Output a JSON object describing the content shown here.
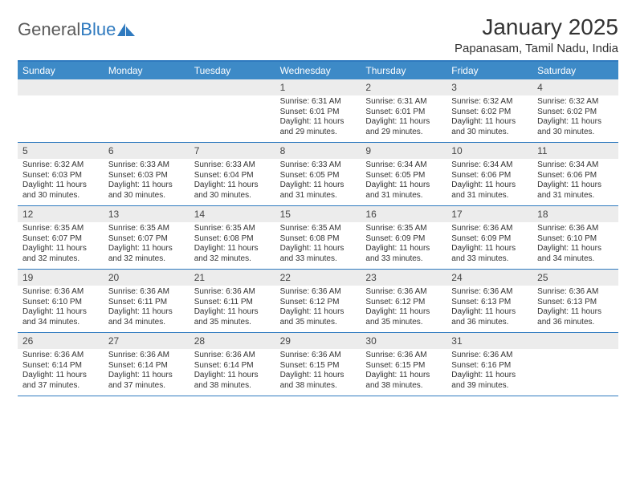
{
  "brand": {
    "first": "General",
    "second": "Blue"
  },
  "title": "January 2025",
  "location": "Papanasam, Tamil Nadu, India",
  "colors": {
    "header_bg": "#3d8ac7",
    "border": "#2f7abf",
    "daynum_bg": "#ececec",
    "text": "#333333",
    "brand_gray": "#5a5a5a",
    "brand_blue": "#2f7abf",
    "background": "#ffffff"
  },
  "layout": {
    "columns": 7,
    "rows": 5,
    "type": "calendar"
  },
  "weekdays": [
    "Sunday",
    "Monday",
    "Tuesday",
    "Wednesday",
    "Thursday",
    "Friday",
    "Saturday"
  ],
  "weeks": [
    {
      "nums": [
        "",
        "",
        "",
        "1",
        "2",
        "3",
        "4"
      ],
      "cells": [
        "",
        "",
        "",
        "Sunrise: 6:31 AM\nSunset: 6:01 PM\nDaylight: 11 hours and 29 minutes.",
        "Sunrise: 6:31 AM\nSunset: 6:01 PM\nDaylight: 11 hours and 29 minutes.",
        "Sunrise: 6:32 AM\nSunset: 6:02 PM\nDaylight: 11 hours and 30 minutes.",
        "Sunrise: 6:32 AM\nSunset: 6:02 PM\nDaylight: 11 hours and 30 minutes."
      ]
    },
    {
      "nums": [
        "5",
        "6",
        "7",
        "8",
        "9",
        "10",
        "11"
      ],
      "cells": [
        "Sunrise: 6:32 AM\nSunset: 6:03 PM\nDaylight: 11 hours and 30 minutes.",
        "Sunrise: 6:33 AM\nSunset: 6:03 PM\nDaylight: 11 hours and 30 minutes.",
        "Sunrise: 6:33 AM\nSunset: 6:04 PM\nDaylight: 11 hours and 30 minutes.",
        "Sunrise: 6:33 AM\nSunset: 6:05 PM\nDaylight: 11 hours and 31 minutes.",
        "Sunrise: 6:34 AM\nSunset: 6:05 PM\nDaylight: 11 hours and 31 minutes.",
        "Sunrise: 6:34 AM\nSunset: 6:06 PM\nDaylight: 11 hours and 31 minutes.",
        "Sunrise: 6:34 AM\nSunset: 6:06 PM\nDaylight: 11 hours and 31 minutes."
      ]
    },
    {
      "nums": [
        "12",
        "13",
        "14",
        "15",
        "16",
        "17",
        "18"
      ],
      "cells": [
        "Sunrise: 6:35 AM\nSunset: 6:07 PM\nDaylight: 11 hours and 32 minutes.",
        "Sunrise: 6:35 AM\nSunset: 6:07 PM\nDaylight: 11 hours and 32 minutes.",
        "Sunrise: 6:35 AM\nSunset: 6:08 PM\nDaylight: 11 hours and 32 minutes.",
        "Sunrise: 6:35 AM\nSunset: 6:08 PM\nDaylight: 11 hours and 33 minutes.",
        "Sunrise: 6:35 AM\nSunset: 6:09 PM\nDaylight: 11 hours and 33 minutes.",
        "Sunrise: 6:36 AM\nSunset: 6:09 PM\nDaylight: 11 hours and 33 minutes.",
        "Sunrise: 6:36 AM\nSunset: 6:10 PM\nDaylight: 11 hours and 34 minutes."
      ]
    },
    {
      "nums": [
        "19",
        "20",
        "21",
        "22",
        "23",
        "24",
        "25"
      ],
      "cells": [
        "Sunrise: 6:36 AM\nSunset: 6:10 PM\nDaylight: 11 hours and 34 minutes.",
        "Sunrise: 6:36 AM\nSunset: 6:11 PM\nDaylight: 11 hours and 34 minutes.",
        "Sunrise: 6:36 AM\nSunset: 6:11 PM\nDaylight: 11 hours and 35 minutes.",
        "Sunrise: 6:36 AM\nSunset: 6:12 PM\nDaylight: 11 hours and 35 minutes.",
        "Sunrise: 6:36 AM\nSunset: 6:12 PM\nDaylight: 11 hours and 35 minutes.",
        "Sunrise: 6:36 AM\nSunset: 6:13 PM\nDaylight: 11 hours and 36 minutes.",
        "Sunrise: 6:36 AM\nSunset: 6:13 PM\nDaylight: 11 hours and 36 minutes."
      ]
    },
    {
      "nums": [
        "26",
        "27",
        "28",
        "29",
        "30",
        "31",
        ""
      ],
      "cells": [
        "Sunrise: 6:36 AM\nSunset: 6:14 PM\nDaylight: 11 hours and 37 minutes.",
        "Sunrise: 6:36 AM\nSunset: 6:14 PM\nDaylight: 11 hours and 37 minutes.",
        "Sunrise: 6:36 AM\nSunset: 6:14 PM\nDaylight: 11 hours and 38 minutes.",
        "Sunrise: 6:36 AM\nSunset: 6:15 PM\nDaylight: 11 hours and 38 minutes.",
        "Sunrise: 6:36 AM\nSunset: 6:15 PM\nDaylight: 11 hours and 38 minutes.",
        "Sunrise: 6:36 AM\nSunset: 6:16 PM\nDaylight: 11 hours and 39 minutes.",
        ""
      ]
    }
  ]
}
